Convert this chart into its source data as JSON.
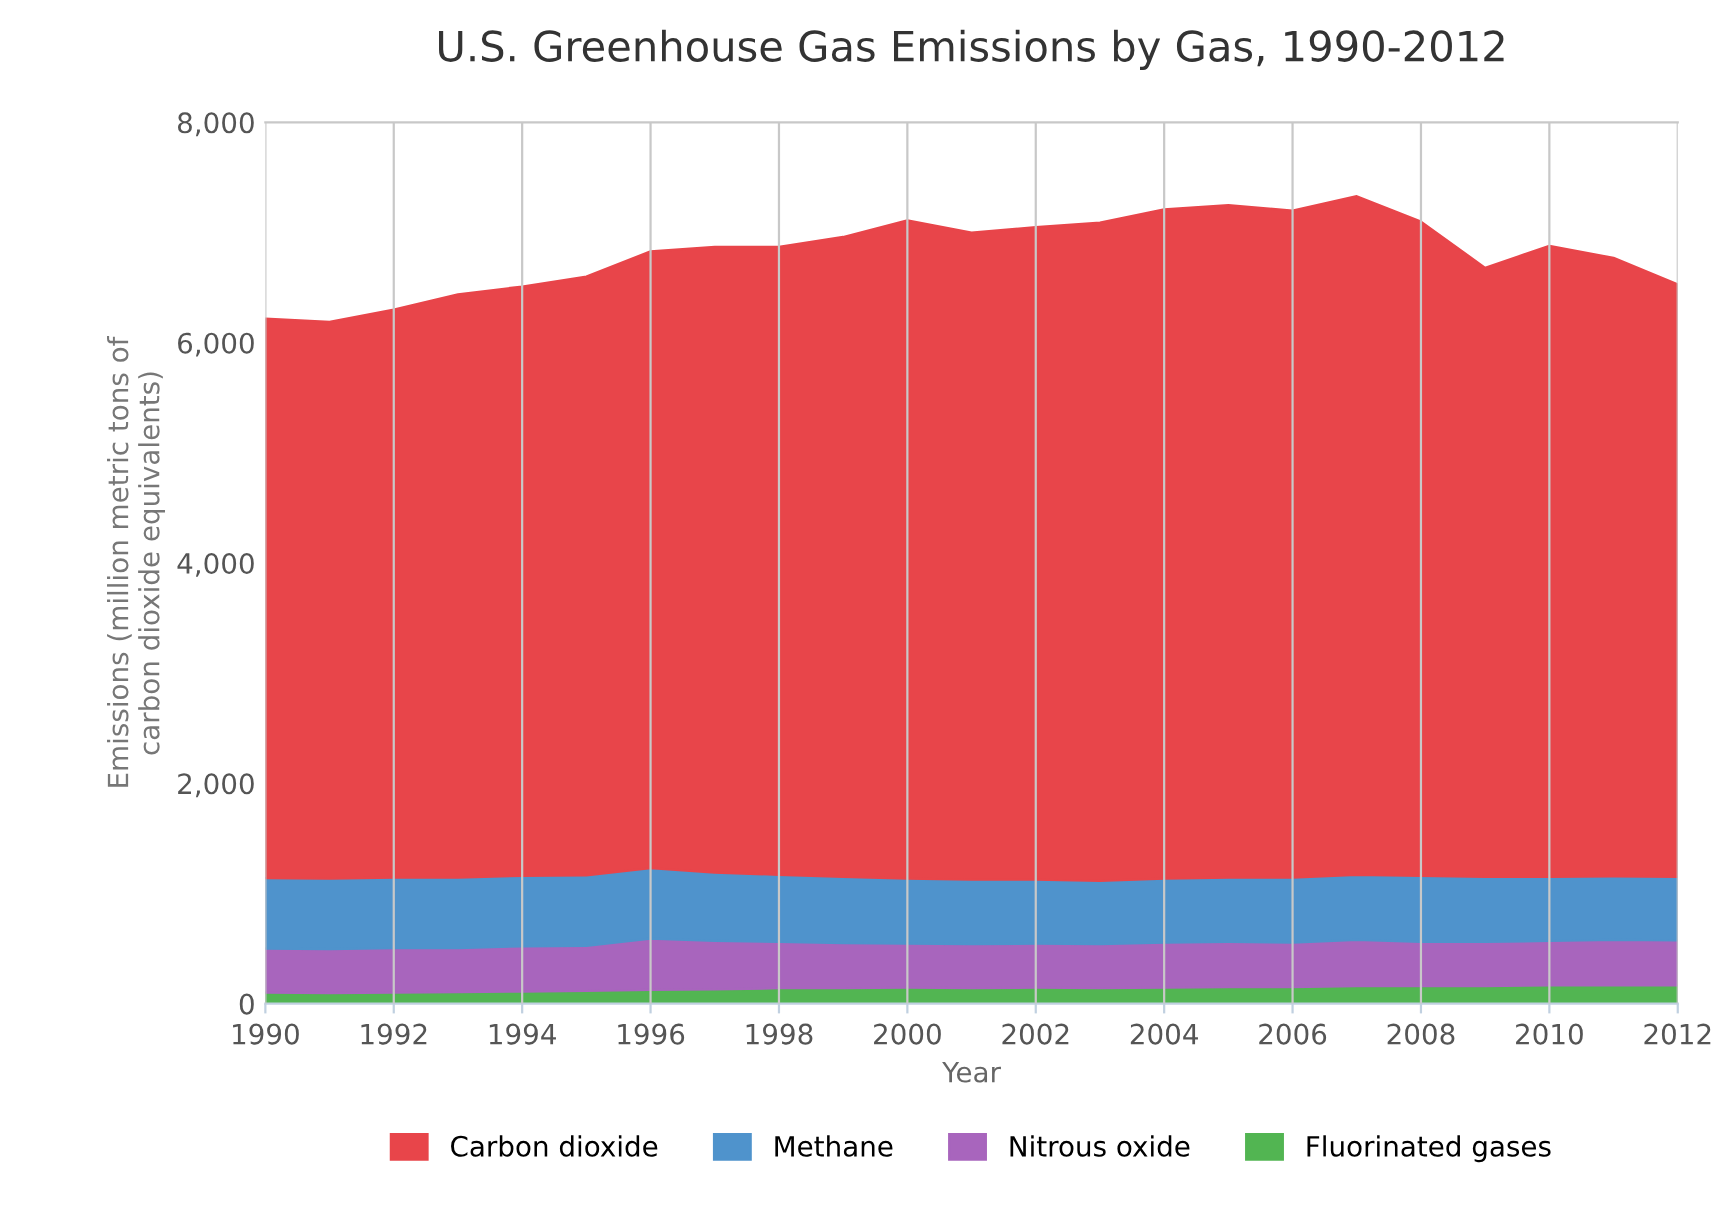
{
  "chart_data": {
    "type": "area",
    "stacked": true,
    "title": "U.S. Greenhouse Gas Emissions by Gas, 1990-2012",
    "xlabel": "Year",
    "ylabel": "Emissions (million metric tons of\ncarbon dioxide equivalents)",
    "x": [
      1990,
      1991,
      1992,
      1993,
      1994,
      1995,
      1996,
      1997,
      1998,
      1999,
      2000,
      2001,
      2002,
      2003,
      2004,
      2005,
      2006,
      2007,
      2008,
      2009,
      2010,
      2011,
      2012
    ],
    "series": [
      {
        "name": "Fluorinated gases",
        "color": "#52b552",
        "values": [
          100,
          95,
          100,
          105,
          110,
          115,
          125,
          130,
          140,
          140,
          145,
          140,
          145,
          140,
          145,
          150,
          150,
          160,
          160,
          160,
          165,
          165,
          165
        ]
      },
      {
        "name": "Nitrous oxide",
        "color": "#a865bd",
        "values": [
          400,
          400,
          405,
          400,
          410,
          410,
          465,
          440,
          420,
          410,
          400,
          400,
          400,
          400,
          410,
          410,
          405,
          420,
          400,
          400,
          405,
          415,
          410
        ]
      },
      {
        "name": "Methane",
        "color": "#4f93cc",
        "values": [
          640,
          640,
          640,
          640,
          640,
          640,
          640,
          620,
          610,
          600,
          590,
          585,
          580,
          575,
          580,
          585,
          590,
          590,
          600,
          590,
          580,
          575,
          575
        ]
      },
      {
        "name": "Carbon dioxide",
        "color": "#e8454a",
        "values": [
          5080,
          5055,
          5155,
          5295,
          5350,
          5435,
          5600,
          5680,
          5700,
          5810,
          5975,
          5875,
          5925,
          5975,
          6075,
          6105,
          6055,
          6160,
          5940,
          5530,
          5730,
          5615,
          5380
        ]
      }
    ],
    "xlim": [
      1990,
      2012
    ],
    "xticks": [
      1990,
      1992,
      1994,
      1996,
      1998,
      2000,
      2002,
      2004,
      2006,
      2008,
      2010,
      2012
    ],
    "ylim": [
      0,
      8000
    ],
    "yticks": [
      {
        "value": 0,
        "label": "0"
      },
      {
        "value": 2000,
        "label": "2,000"
      },
      {
        "value": 4000,
        "label": "4,000"
      },
      {
        "value": 6000,
        "label": "6,000"
      },
      {
        "value": 8000,
        "label": "8,000"
      }
    ],
    "grid": "x",
    "legend": "bottom"
  }
}
